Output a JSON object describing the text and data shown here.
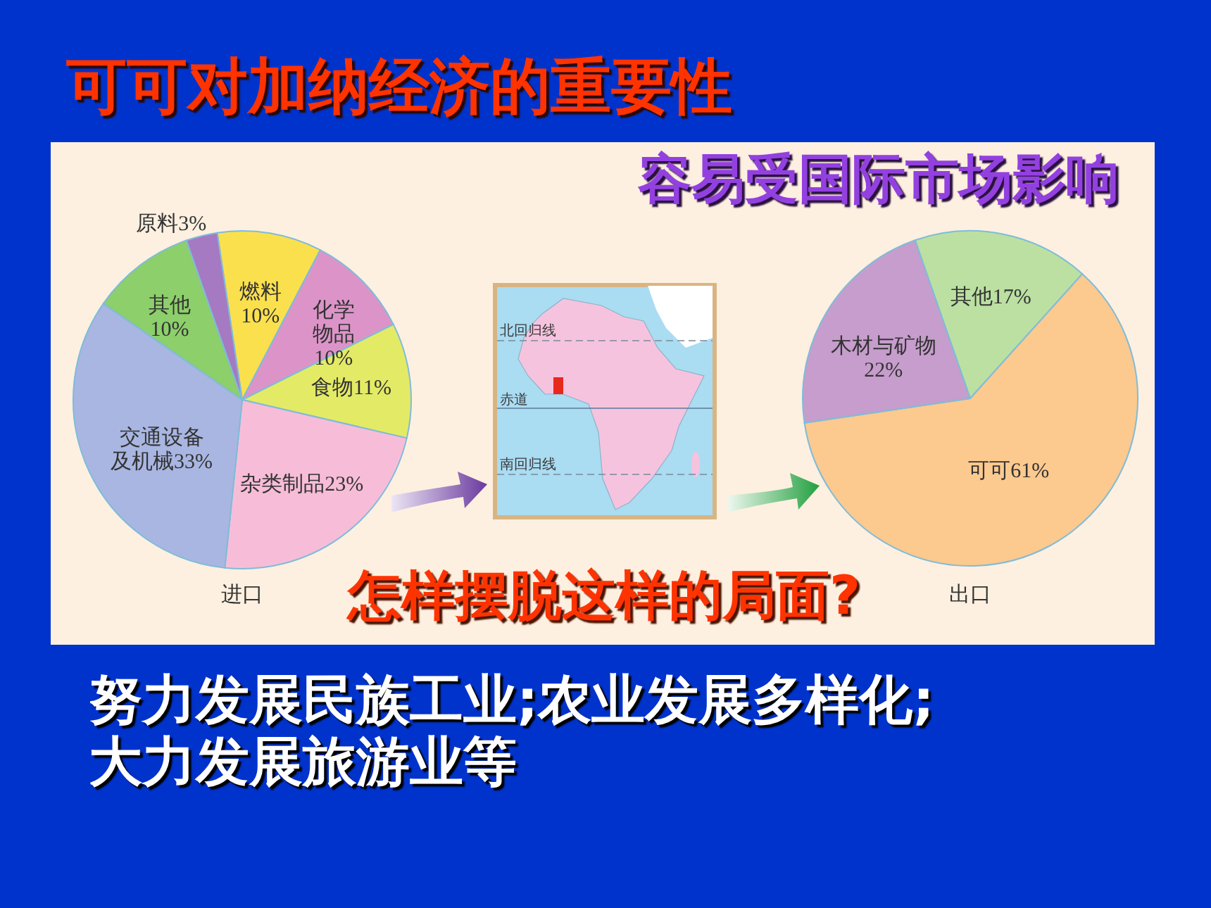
{
  "chart_data": [
    {
      "type": "other",
      "title": "可可对加纳经济的重要性",
      "subtitle": "容易受国际市场影响",
      "annotations": [
        "怎样摆脱这样的局面?",
        "努力发展民族工业;农业发展多样化;",
        "大力发展旅游业等",
        "北回归线",
        "赤道",
        "南回归线"
      ]
    },
    {
      "type": "pie",
      "xlabel": "进口",
      "categories": [
        "燃料",
        "化学物品",
        "食物",
        "杂类制品",
        "交通设备及机械",
        "其他",
        "原料"
      ],
      "values": [
        10,
        10,
        11,
        23,
        33,
        10,
        3
      ],
      "value_labels": [
        "10%",
        "10%",
        "11%",
        "23%",
        "33%",
        "10%",
        "3%"
      ],
      "colors": [
        "#fbe04e",
        "#dc94c8",
        "#e3ea66",
        "#f7bdd8",
        "#a9b6e2",
        "#8ccf6b",
        "#a57ac2"
      ]
    },
    {
      "type": "pie",
      "xlabel": "出口",
      "categories": [
        "其他",
        "可可",
        "木材与矿物"
      ],
      "values": [
        17,
        61,
        22
      ],
      "value_labels": [
        "17%",
        "61%",
        "22%"
      ],
      "colors": [
        "#bbe0a2",
        "#fcc98f",
        "#c69dcc"
      ]
    }
  ]
}
